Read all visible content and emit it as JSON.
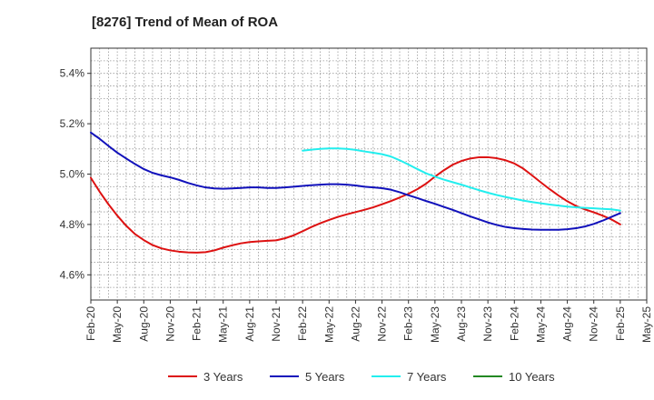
{
  "chart_data": {
    "type": "line",
    "title": "[8276]  Trend of Mean of ROA",
    "x_tick_labels": [
      "Feb-20",
      "May-20",
      "Aug-20",
      "Nov-20",
      "Feb-21",
      "May-21",
      "Aug-21",
      "Nov-21",
      "Feb-22",
      "May-22",
      "Aug-22",
      "Nov-22",
      "Feb-23",
      "May-23",
      "Aug-23",
      "Nov-23",
      "Feb-24",
      "May-24",
      "Aug-24",
      "Nov-24",
      "Feb-25",
      "May-25"
    ],
    "y_ticks": [
      4.6,
      4.8,
      5.0,
      5.2,
      5.4
    ],
    "y_tick_labels": [
      "4.6%",
      "4.8%",
      "5.0%",
      "5.2%",
      "5.4%"
    ],
    "ylim": [
      4.5,
      5.5
    ],
    "y_unit": "%",
    "grid": true,
    "legend_position": "bottom",
    "series": [
      {
        "name": "3 Years",
        "color": "#dd1111",
        "points": [
          {
            "x": "Feb-20",
            "y": 4.985
          },
          {
            "x": "Mar-20",
            "y": 4.93
          },
          {
            "x": "Apr-20",
            "y": 4.88
          },
          {
            "x": "May-20",
            "y": 4.835
          },
          {
            "x": "Jun-20",
            "y": 4.795
          },
          {
            "x": "Jul-20",
            "y": 4.762
          },
          {
            "x": "Aug-20",
            "y": 4.738
          },
          {
            "x": "Sep-20",
            "y": 4.718
          },
          {
            "x": "Oct-20",
            "y": 4.705
          },
          {
            "x": "Nov-20",
            "y": 4.697
          },
          {
            "x": "Dec-20",
            "y": 4.692
          },
          {
            "x": "Jan-21",
            "y": 4.689
          },
          {
            "x": "Feb-21",
            "y": 4.688
          },
          {
            "x": "Mar-21",
            "y": 4.69
          },
          {
            "x": "Apr-21",
            "y": 4.697
          },
          {
            "x": "May-21",
            "y": 4.708
          },
          {
            "x": "Jun-21",
            "y": 4.717
          },
          {
            "x": "Jul-21",
            "y": 4.725
          },
          {
            "x": "Aug-21",
            "y": 4.73
          },
          {
            "x": "Sep-21",
            "y": 4.733
          },
          {
            "x": "Oct-21",
            "y": 4.735
          },
          {
            "x": "Nov-21",
            "y": 4.737
          },
          {
            "x": "Dec-21",
            "y": 4.745
          },
          {
            "x": "Jan-22",
            "y": 4.757
          },
          {
            "x": "Feb-22",
            "y": 4.773
          },
          {
            "x": "Mar-22",
            "y": 4.79
          },
          {
            "x": "Apr-22",
            "y": 4.805
          },
          {
            "x": "May-22",
            "y": 4.818
          },
          {
            "x": "Jun-22",
            "y": 4.83
          },
          {
            "x": "Jul-22",
            "y": 4.84
          },
          {
            "x": "Aug-22",
            "y": 4.849
          },
          {
            "x": "Sep-22",
            "y": 4.858
          },
          {
            "x": "Oct-22",
            "y": 4.868
          },
          {
            "x": "Nov-22",
            "y": 4.88
          },
          {
            "x": "Dec-22",
            "y": 4.893
          },
          {
            "x": "Jan-23",
            "y": 4.907
          },
          {
            "x": "Feb-23",
            "y": 4.922
          },
          {
            "x": "Mar-23",
            "y": 4.94
          },
          {
            "x": "Apr-23",
            "y": 4.962
          },
          {
            "x": "May-23",
            "y": 4.99
          },
          {
            "x": "Jun-23",
            "y": 5.015
          },
          {
            "x": "Jul-23",
            "y": 5.037
          },
          {
            "x": "Aug-23",
            "y": 5.052
          },
          {
            "x": "Sep-23",
            "y": 5.062
          },
          {
            "x": "Oct-23",
            "y": 5.067
          },
          {
            "x": "Nov-23",
            "y": 5.067
          },
          {
            "x": "Dec-23",
            "y": 5.063
          },
          {
            "x": "Jan-24",
            "y": 5.055
          },
          {
            "x": "Feb-24",
            "y": 5.042
          },
          {
            "x": "Mar-24",
            "y": 5.022
          },
          {
            "x": "Apr-24",
            "y": 4.995
          },
          {
            "x": "May-24",
            "y": 4.967
          },
          {
            "x": "Jun-24",
            "y": 4.94
          },
          {
            "x": "Jul-24",
            "y": 4.915
          },
          {
            "x": "Aug-24",
            "y": 4.892
          },
          {
            "x": "Sep-24",
            "y": 4.873
          },
          {
            "x": "Oct-24",
            "y": 4.86
          },
          {
            "x": "Nov-24",
            "y": 4.848
          },
          {
            "x": "Dec-24",
            "y": 4.835
          },
          {
            "x": "Jan-25",
            "y": 4.82
          },
          {
            "x": "Feb-25",
            "y": 4.8
          }
        ]
      },
      {
        "name": "5 Years",
        "color": "#1111bb",
        "points": [
          {
            "x": "Feb-20",
            "y": 5.165
          },
          {
            "x": "Mar-20",
            "y": 5.14
          },
          {
            "x": "Apr-20",
            "y": 5.112
          },
          {
            "x": "May-20",
            "y": 5.085
          },
          {
            "x": "Jun-20",
            "y": 5.062
          },
          {
            "x": "Jul-20",
            "y": 5.04
          },
          {
            "x": "Aug-20",
            "y": 5.02
          },
          {
            "x": "Sep-20",
            "y": 5.005
          },
          {
            "x": "Oct-20",
            "y": 4.995
          },
          {
            "x": "Nov-20",
            "y": 4.987
          },
          {
            "x": "Dec-20",
            "y": 4.977
          },
          {
            "x": "Jan-21",
            "y": 4.965
          },
          {
            "x": "Feb-21",
            "y": 4.955
          },
          {
            "x": "Mar-21",
            "y": 4.947
          },
          {
            "x": "Apr-21",
            "y": 4.943
          },
          {
            "x": "May-21",
            "y": 4.942
          },
          {
            "x": "Jun-21",
            "y": 4.943
          },
          {
            "x": "Jul-21",
            "y": 4.945
          },
          {
            "x": "Aug-21",
            "y": 4.947
          },
          {
            "x": "Sep-21",
            "y": 4.947
          },
          {
            "x": "Oct-21",
            "y": 4.945
          },
          {
            "x": "Nov-21",
            "y": 4.945
          },
          {
            "x": "Dec-21",
            "y": 4.947
          },
          {
            "x": "Jan-22",
            "y": 4.95
          },
          {
            "x": "Feb-22",
            "y": 4.953
          },
          {
            "x": "Mar-22",
            "y": 4.956
          },
          {
            "x": "Apr-22",
            "y": 4.958
          },
          {
            "x": "May-22",
            "y": 4.96
          },
          {
            "x": "Jun-22",
            "y": 4.96
          },
          {
            "x": "Jul-22",
            "y": 4.958
          },
          {
            "x": "Aug-22",
            "y": 4.955
          },
          {
            "x": "Sep-22",
            "y": 4.95
          },
          {
            "x": "Oct-22",
            "y": 4.947
          },
          {
            "x": "Nov-22",
            "y": 4.944
          },
          {
            "x": "Dec-22",
            "y": 4.938
          },
          {
            "x": "Jan-23",
            "y": 4.928
          },
          {
            "x": "Feb-23",
            "y": 4.916
          },
          {
            "x": "Mar-23",
            "y": 4.905
          },
          {
            "x": "Apr-23",
            "y": 4.893
          },
          {
            "x": "May-23",
            "y": 4.882
          },
          {
            "x": "Jun-23",
            "y": 4.87
          },
          {
            "x": "Jul-23",
            "y": 4.858
          },
          {
            "x": "Aug-23",
            "y": 4.845
          },
          {
            "x": "Sep-23",
            "y": 4.832
          },
          {
            "x": "Oct-23",
            "y": 4.82
          },
          {
            "x": "Nov-23",
            "y": 4.808
          },
          {
            "x": "Dec-23",
            "y": 4.798
          },
          {
            "x": "Jan-24",
            "y": 4.79
          },
          {
            "x": "Feb-24",
            "y": 4.785
          },
          {
            "x": "Mar-24",
            "y": 4.782
          },
          {
            "x": "Apr-24",
            "y": 4.78
          },
          {
            "x": "May-24",
            "y": 4.779
          },
          {
            "x": "Jun-24",
            "y": 4.779
          },
          {
            "x": "Jul-24",
            "y": 4.779
          },
          {
            "x": "Aug-24",
            "y": 4.781
          },
          {
            "x": "Sep-24",
            "y": 4.785
          },
          {
            "x": "Oct-24",
            "y": 4.792
          },
          {
            "x": "Nov-24",
            "y": 4.802
          },
          {
            "x": "Dec-24",
            "y": 4.815
          },
          {
            "x": "Jan-25",
            "y": 4.83
          },
          {
            "x": "Feb-25",
            "y": 4.845
          }
        ]
      },
      {
        "name": "7 Years",
        "color": "#22eeee",
        "points": [
          {
            "x": "Feb-22",
            "y": 5.093
          },
          {
            "x": "Mar-22",
            "y": 5.097
          },
          {
            "x": "Apr-22",
            "y": 5.1
          },
          {
            "x": "May-22",
            "y": 5.102
          },
          {
            "x": "Jun-22",
            "y": 5.102
          },
          {
            "x": "Jul-22",
            "y": 5.1
          },
          {
            "x": "Aug-22",
            "y": 5.096
          },
          {
            "x": "Sep-22",
            "y": 5.09
          },
          {
            "x": "Oct-22",
            "y": 5.085
          },
          {
            "x": "Nov-22",
            "y": 5.079
          },
          {
            "x": "Dec-22",
            "y": 5.07
          },
          {
            "x": "Jan-23",
            "y": 5.055
          },
          {
            "x": "Feb-23",
            "y": 5.038
          },
          {
            "x": "Mar-23",
            "y": 5.02
          },
          {
            "x": "Apr-23",
            "y": 5.003
          },
          {
            "x": "May-23",
            "y": 4.99
          },
          {
            "x": "Jun-23",
            "y": 4.978
          },
          {
            "x": "Jul-23",
            "y": 4.968
          },
          {
            "x": "Aug-23",
            "y": 4.958
          },
          {
            "x": "Sep-23",
            "y": 4.947
          },
          {
            "x": "Oct-23",
            "y": 4.936
          },
          {
            "x": "Nov-23",
            "y": 4.926
          },
          {
            "x": "Dec-23",
            "y": 4.917
          },
          {
            "x": "Jan-24",
            "y": 4.909
          },
          {
            "x": "Feb-24",
            "y": 4.902
          },
          {
            "x": "Mar-24",
            "y": 4.895
          },
          {
            "x": "Apr-24",
            "y": 4.889
          },
          {
            "x": "May-24",
            "y": 4.884
          },
          {
            "x": "Jun-24",
            "y": 4.879
          },
          {
            "x": "Jul-24",
            "y": 4.875
          },
          {
            "x": "Aug-24",
            "y": 4.871
          },
          {
            "x": "Sep-24",
            "y": 4.868
          },
          {
            "x": "Oct-24",
            "y": 4.866
          },
          {
            "x": "Nov-24",
            "y": 4.864
          },
          {
            "x": "Dec-24",
            "y": 4.862
          },
          {
            "x": "Jan-25",
            "y": 4.86
          },
          {
            "x": "Feb-25",
            "y": 4.855
          }
        ]
      },
      {
        "name": "10 Years",
        "color": "#228822",
        "points": []
      }
    ]
  }
}
